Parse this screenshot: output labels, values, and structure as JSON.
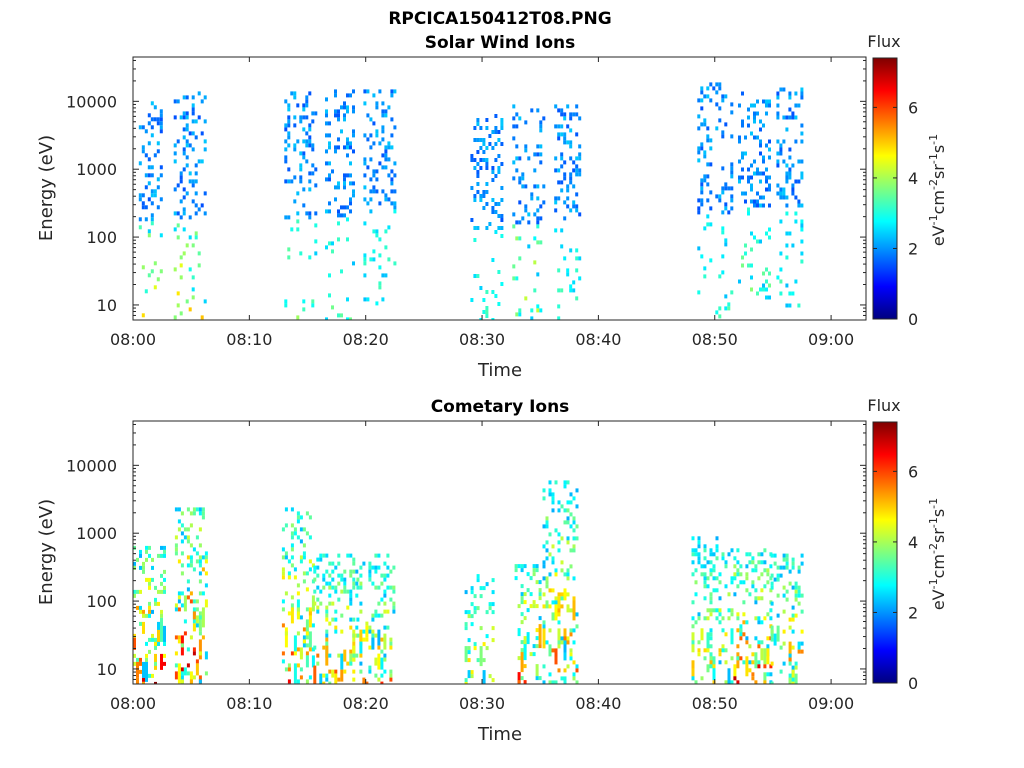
{
  "figure": {
    "title": "RPCICA150412T08.PNG"
  },
  "colormap": [
    "#00007f",
    "#0000ff",
    "#007fff",
    "#00ffff",
    "#7fff7f",
    "#ffff00",
    "#ff7f00",
    "#ff0000",
    "#7f0000"
  ],
  "chart_data": [
    {
      "type": "heatmap",
      "title": "Solar Wind Ions",
      "xlabel": "Time",
      "ylabel": "Energy (eV)",
      "xticks": [
        "08:00",
        "08:10",
        "08:20",
        "08:30",
        "08:40",
        "08:50",
        "09:00"
      ],
      "xlim": [
        "08:00",
        "09:03"
      ],
      "yscale": "log",
      "ylim": [
        6,
        45000
      ],
      "yticks": [
        10,
        100,
        1000,
        10000
      ],
      "yticklabels": [
        "10",
        "100",
        "1000",
        "10000"
      ],
      "colorbar": {
        "title": "Flux",
        "label": "eV-1cm-2sr-1s-1",
        "ticks": [
          0,
          2,
          4,
          6
        ],
        "tick_labels": [
          "0",
          "2",
          "4",
          "6"
        ],
        "range": [
          0,
          7.4
        ]
      },
      "bursts": [
        {
          "start_min": 0.5,
          "end_min": 2.5,
          "e_top": 10000,
          "e_bottom": 6,
          "peak_flux": 5.0
        },
        {
          "start_min": 3.5,
          "end_min": 6.2,
          "e_top": 14000,
          "e_bottom": 6,
          "peak_flux": 5.5
        },
        {
          "start_min": 13.0,
          "end_min": 15.8,
          "e_top": 14000,
          "e_bottom": 6,
          "peak_flux": 4.0
        },
        {
          "start_min": 16.5,
          "end_min": 19.0,
          "e_top": 15000,
          "e_bottom": 6,
          "peak_flux": 3.8
        },
        {
          "start_min": 19.8,
          "end_min": 22.4,
          "e_top": 15000,
          "e_bottom": 10,
          "peak_flux": 3.5
        },
        {
          "start_min": 29.0,
          "end_min": 31.8,
          "e_top": 6500,
          "e_bottom": 6,
          "peak_flux": 3.5
        },
        {
          "start_min": 32.6,
          "end_min": 35.2,
          "e_top": 9000,
          "e_bottom": 6,
          "peak_flux": 5.0
        },
        {
          "start_min": 36.2,
          "end_min": 38.3,
          "e_top": 9000,
          "e_bottom": 6,
          "peak_flux": 3.5
        },
        {
          "start_min": 48.5,
          "end_min": 51.5,
          "e_top": 19000,
          "e_bottom": 6,
          "peak_flux": 3.5
        },
        {
          "start_min": 52.0,
          "end_min": 54.6,
          "e_top": 16000,
          "e_bottom": 10,
          "peak_flux": 4.0
        },
        {
          "start_min": 55.3,
          "end_min": 57.6,
          "e_top": 16000,
          "e_bottom": 10,
          "peak_flux": 3.5
        }
      ]
    },
    {
      "type": "heatmap",
      "title": "Cometary Ions",
      "xlabel": "Time",
      "ylabel": "Energy (eV)",
      "xticks": [
        "08:00",
        "08:10",
        "08:20",
        "08:30",
        "08:40",
        "08:50",
        "09:00"
      ],
      "xlim": [
        "08:00",
        "09:03"
      ],
      "yscale": "log",
      "ylim": [
        6,
        45000
      ],
      "yticks": [
        10,
        100,
        1000,
        10000
      ],
      "yticklabels": [
        "10",
        "100",
        "1000",
        "10000"
      ],
      "colorbar": {
        "title": "Flux",
        "label": "eV-1cm-2sr-1s-1",
        "ticks": [
          0,
          2,
          4,
          6
        ],
        "tick_labels": [
          "0",
          "2",
          "4",
          "6"
        ],
        "range": [
          0,
          7.4
        ]
      },
      "bursts": [
        {
          "start_min": 0.0,
          "end_min": 2.8,
          "e_top": 650,
          "e_bottom": 6,
          "peak_flux": 6.5
        },
        {
          "start_min": 3.6,
          "end_min": 6.2,
          "e_top": 2400,
          "e_bottom": 6,
          "peak_flux": 6.8
        },
        {
          "start_min": 12.8,
          "end_min": 15.5,
          "e_top": 2400,
          "e_bottom": 6,
          "peak_flux": 6.0
        },
        {
          "start_min": 15.5,
          "end_min": 19.2,
          "e_top": 500,
          "e_bottom": 6,
          "peak_flux": 5.5
        },
        {
          "start_min": 19.2,
          "end_min": 22.3,
          "e_top": 500,
          "e_bottom": 6,
          "peak_flux": 5.5
        },
        {
          "start_min": 28.5,
          "end_min": 31.0,
          "e_top": 250,
          "e_bottom": 6,
          "peak_flux": 5.0
        },
        {
          "start_min": 32.8,
          "end_min": 35.0,
          "e_top": 350,
          "e_bottom": 6,
          "peak_flux": 6.2
        },
        {
          "start_min": 35.2,
          "end_min": 38.2,
          "e_top": 6000,
          "e_bottom": 6,
          "peak_flux": 5.6
        },
        {
          "start_min": 48.0,
          "end_min": 51.6,
          "e_top": 900,
          "e_bottom": 6,
          "peak_flux": 5.0
        },
        {
          "start_min": 51.6,
          "end_min": 54.8,
          "e_top": 600,
          "e_bottom": 6,
          "peak_flux": 6.2
        },
        {
          "start_min": 54.8,
          "end_min": 57.6,
          "e_top": 500,
          "e_bottom": 6,
          "peak_flux": 5.5
        }
      ]
    }
  ]
}
